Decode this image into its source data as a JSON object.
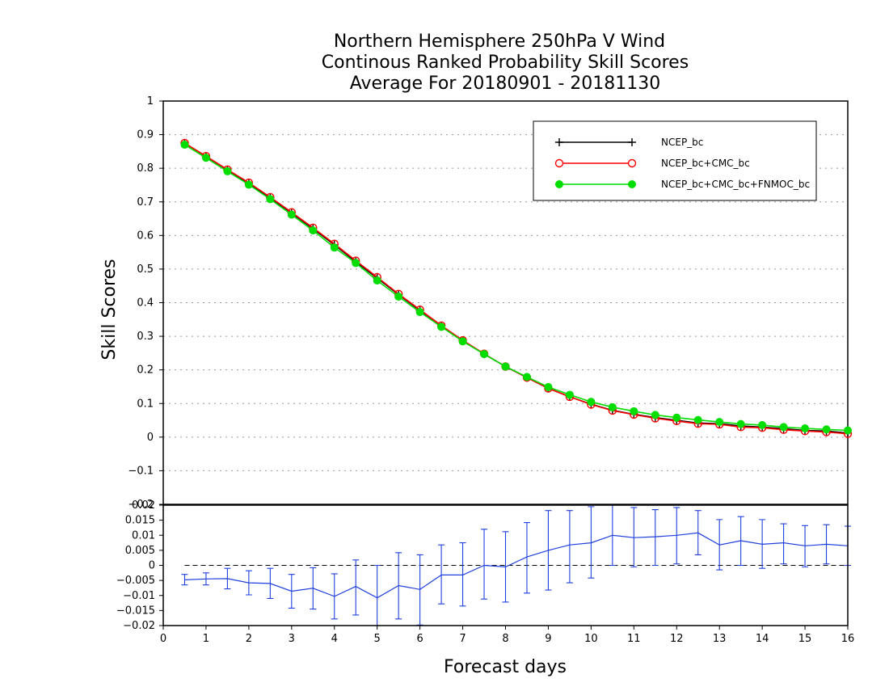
{
  "title_lines": [
    "Northern Hemisphere 250hPa V Wind",
    "Continous Ranked Probability Skill Scores",
    "Average For 20180901 - 20181130"
  ],
  "chart_data": [
    {
      "type": "line",
      "panel": "main",
      "ylabel": "Skill Scores",
      "xlim": [
        0,
        16
      ],
      "ylim": [
        -0.2,
        1.0
      ],
      "yticks": [
        "1",
        "0.9",
        "0.8",
        "0.7",
        "0.6",
        "0.5",
        "0.4",
        "0.3",
        "0.2",
        "0.1",
        "0",
        "−0.1",
        "−0.2"
      ],
      "ytick_values": [
        1,
        0.9,
        0.8,
        0.7,
        0.6,
        0.5,
        0.4,
        0.3,
        0.2,
        0.1,
        0,
        -0.1,
        -0.2
      ],
      "grid": "dotted horizontal",
      "legend_position": "top-right",
      "x": [
        0.5,
        1.0,
        1.5,
        2.0,
        2.5,
        3.0,
        3.5,
        4.0,
        4.5,
        5.0,
        5.5,
        6.0,
        6.5,
        7.0,
        7.5,
        8.0,
        8.5,
        9.0,
        9.5,
        10.0,
        10.5,
        11.0,
        11.5,
        12.0,
        12.5,
        13.0,
        13.5,
        14.0,
        14.5,
        15.0,
        15.5,
        16.0
      ],
      "series": [
        {
          "name": "NCEP_bc",
          "color": "#000000",
          "marker": "plus",
          "values": [
            0.875,
            0.835,
            0.795,
            0.755,
            0.712,
            0.667,
            0.62,
            0.572,
            0.522,
            0.473,
            0.424,
            0.377,
            0.331,
            0.287,
            0.247,
            0.21,
            0.177,
            0.145,
            0.12,
            0.098,
            0.08,
            0.068,
            0.058,
            0.05,
            0.042,
            0.04,
            0.033,
            0.03,
            0.025,
            0.02,
            0.018,
            0.012
          ]
        },
        {
          "name": "NCEP_bc+CMC_bc",
          "color": "#ff0000",
          "marker": "open-circle",
          "values": [
            0.875,
            0.836,
            0.796,
            0.757,
            0.714,
            0.669,
            0.623,
            0.575,
            0.525,
            0.476,
            0.426,
            0.379,
            0.332,
            0.288,
            0.248,
            0.21,
            0.177,
            0.145,
            0.12,
            0.097,
            0.079,
            0.067,
            0.056,
            0.048,
            0.04,
            0.038,
            0.03,
            0.028,
            0.022,
            0.018,
            0.015,
            0.01
          ]
        },
        {
          "name": "NCEP_bc+CMC_bc+FNMOC_bc",
          "color": "#00dd00",
          "marker": "filled-circle",
          "values": [
            0.87,
            0.831,
            0.791,
            0.751,
            0.708,
            0.662,
            0.615,
            0.564,
            0.518,
            0.466,
            0.418,
            0.372,
            0.328,
            0.285,
            0.247,
            0.21,
            0.179,
            0.149,
            0.126,
            0.105,
            0.089,
            0.077,
            0.066,
            0.058,
            0.051,
            0.045,
            0.039,
            0.036,
            0.03,
            0.026,
            0.023,
            0.02
          ]
        }
      ]
    },
    {
      "type": "line",
      "panel": "difference",
      "xlabel": "Forecast days",
      "xlim": [
        0,
        16
      ],
      "ylim": [
        -0.02,
        0.02
      ],
      "xticks": [
        "0",
        "1",
        "2",
        "3",
        "4",
        "5",
        "6",
        "7",
        "8",
        "9",
        "10",
        "11",
        "12",
        "13",
        "14",
        "15",
        "16"
      ],
      "xtick_values": [
        0,
        1,
        2,
        3,
        4,
        5,
        6,
        7,
        8,
        9,
        10,
        11,
        12,
        13,
        14,
        15,
        16
      ],
      "yticks": [
        "0.02",
        "0.015",
        "0.01",
        "0.005",
        "0",
        "−0.005",
        "−0.01",
        "−0.015",
        "−0.02"
      ],
      "ytick_values": [
        0.02,
        0.015,
        0.01,
        0.005,
        0,
        -0.005,
        -0.01,
        -0.015,
        -0.02
      ],
      "zero_line": "dashed",
      "x": [
        0.5,
        1.0,
        1.5,
        2.0,
        2.5,
        3.0,
        3.5,
        4.0,
        4.5,
        5.0,
        5.5,
        6.0,
        6.5,
        7.0,
        7.5,
        8.0,
        8.5,
        9.0,
        9.5,
        10.0,
        10.5,
        11.0,
        11.5,
        12.0,
        12.5,
        13.0,
        13.5,
        14.0,
        14.5,
        15.0,
        15.5,
        16.0
      ],
      "series": [
        {
          "color": "#2040dd",
          "error_bars": true,
          "values": [
            -0.0048,
            -0.0045,
            -0.0044,
            -0.0058,
            -0.006,
            -0.0086,
            -0.0076,
            -0.0103,
            -0.007,
            -0.0108,
            -0.0067,
            -0.008,
            -0.0032,
            -0.0032,
            0.0,
            -0.0005,
            0.0028,
            0.005,
            0.0068,
            0.0075,
            0.01,
            0.0092,
            0.0095,
            0.01,
            0.0108,
            0.0068,
            0.0082,
            0.007,
            0.0075,
            0.0065,
            0.007,
            0.0065
          ],
          "lower": [
            -0.0065,
            -0.0065,
            -0.0078,
            -0.0098,
            -0.011,
            -0.0142,
            -0.0145,
            -0.0178,
            -0.0165,
            -0.0205,
            -0.0178,
            -0.0198,
            -0.0128,
            -0.0135,
            -0.0112,
            -0.0122,
            -0.0092,
            -0.0082,
            -0.0058,
            -0.0042,
            0.0,
            -0.0005,
            0.0,
            0.0005,
            0.0035,
            -0.0015,
            0.0,
            -0.001,
            0.0005,
            -0.0005,
            0.0005,
            0.0
          ],
          "upper": [
            -0.003,
            -0.0025,
            -0.001,
            -0.0018,
            -0.001,
            -0.003,
            -0.0008,
            -0.0028,
            0.0018,
            0.0,
            0.0042,
            0.0035,
            0.0068,
            0.0075,
            0.012,
            0.0112,
            0.0142,
            0.0182,
            0.0182,
            0.0195,
            0.021,
            0.0192,
            0.0185,
            0.0192,
            0.0182,
            0.0152,
            0.0162,
            0.0152,
            0.0138,
            0.0132,
            0.0135,
            0.013
          ]
        }
      ]
    }
  ]
}
